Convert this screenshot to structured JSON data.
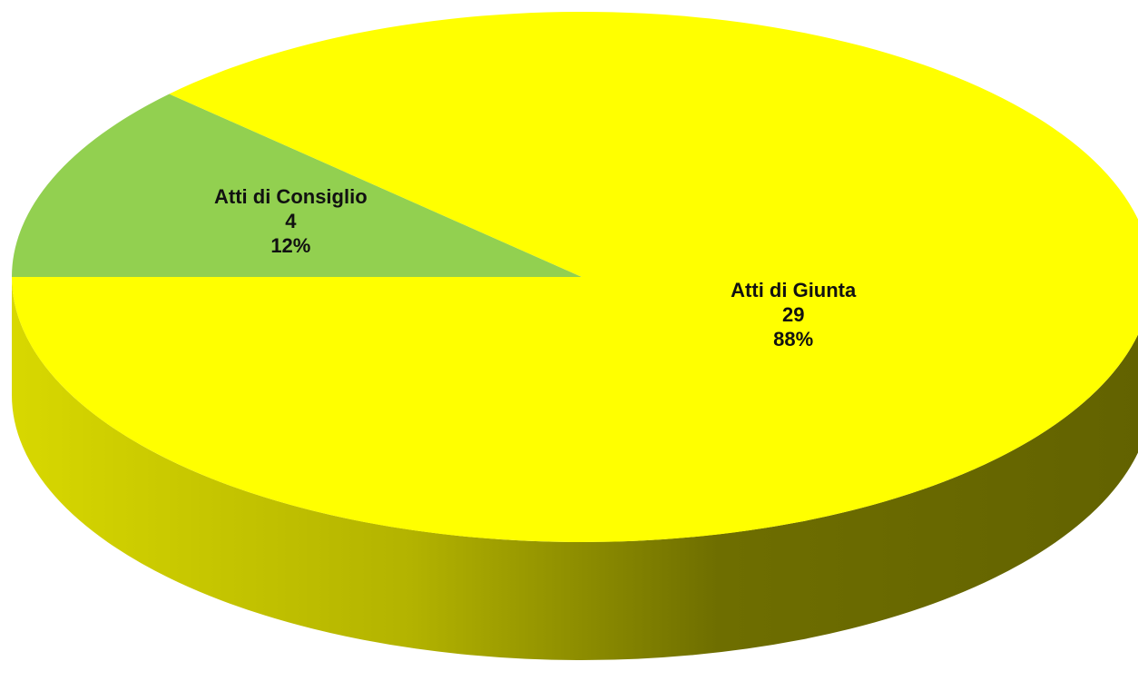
{
  "chart_data": {
    "type": "pie",
    "style": "3d",
    "title": "",
    "slices": [
      {
        "label": "Atti di Consiglio",
        "value": 4,
        "percent": "12%",
        "color": "#92d050"
      },
      {
        "label": "Atti di Giunta",
        "value": 29,
        "percent": "88%",
        "color": "#ffff00"
      }
    ],
    "legend": "none",
    "data_labels": "category, value, percent"
  }
}
